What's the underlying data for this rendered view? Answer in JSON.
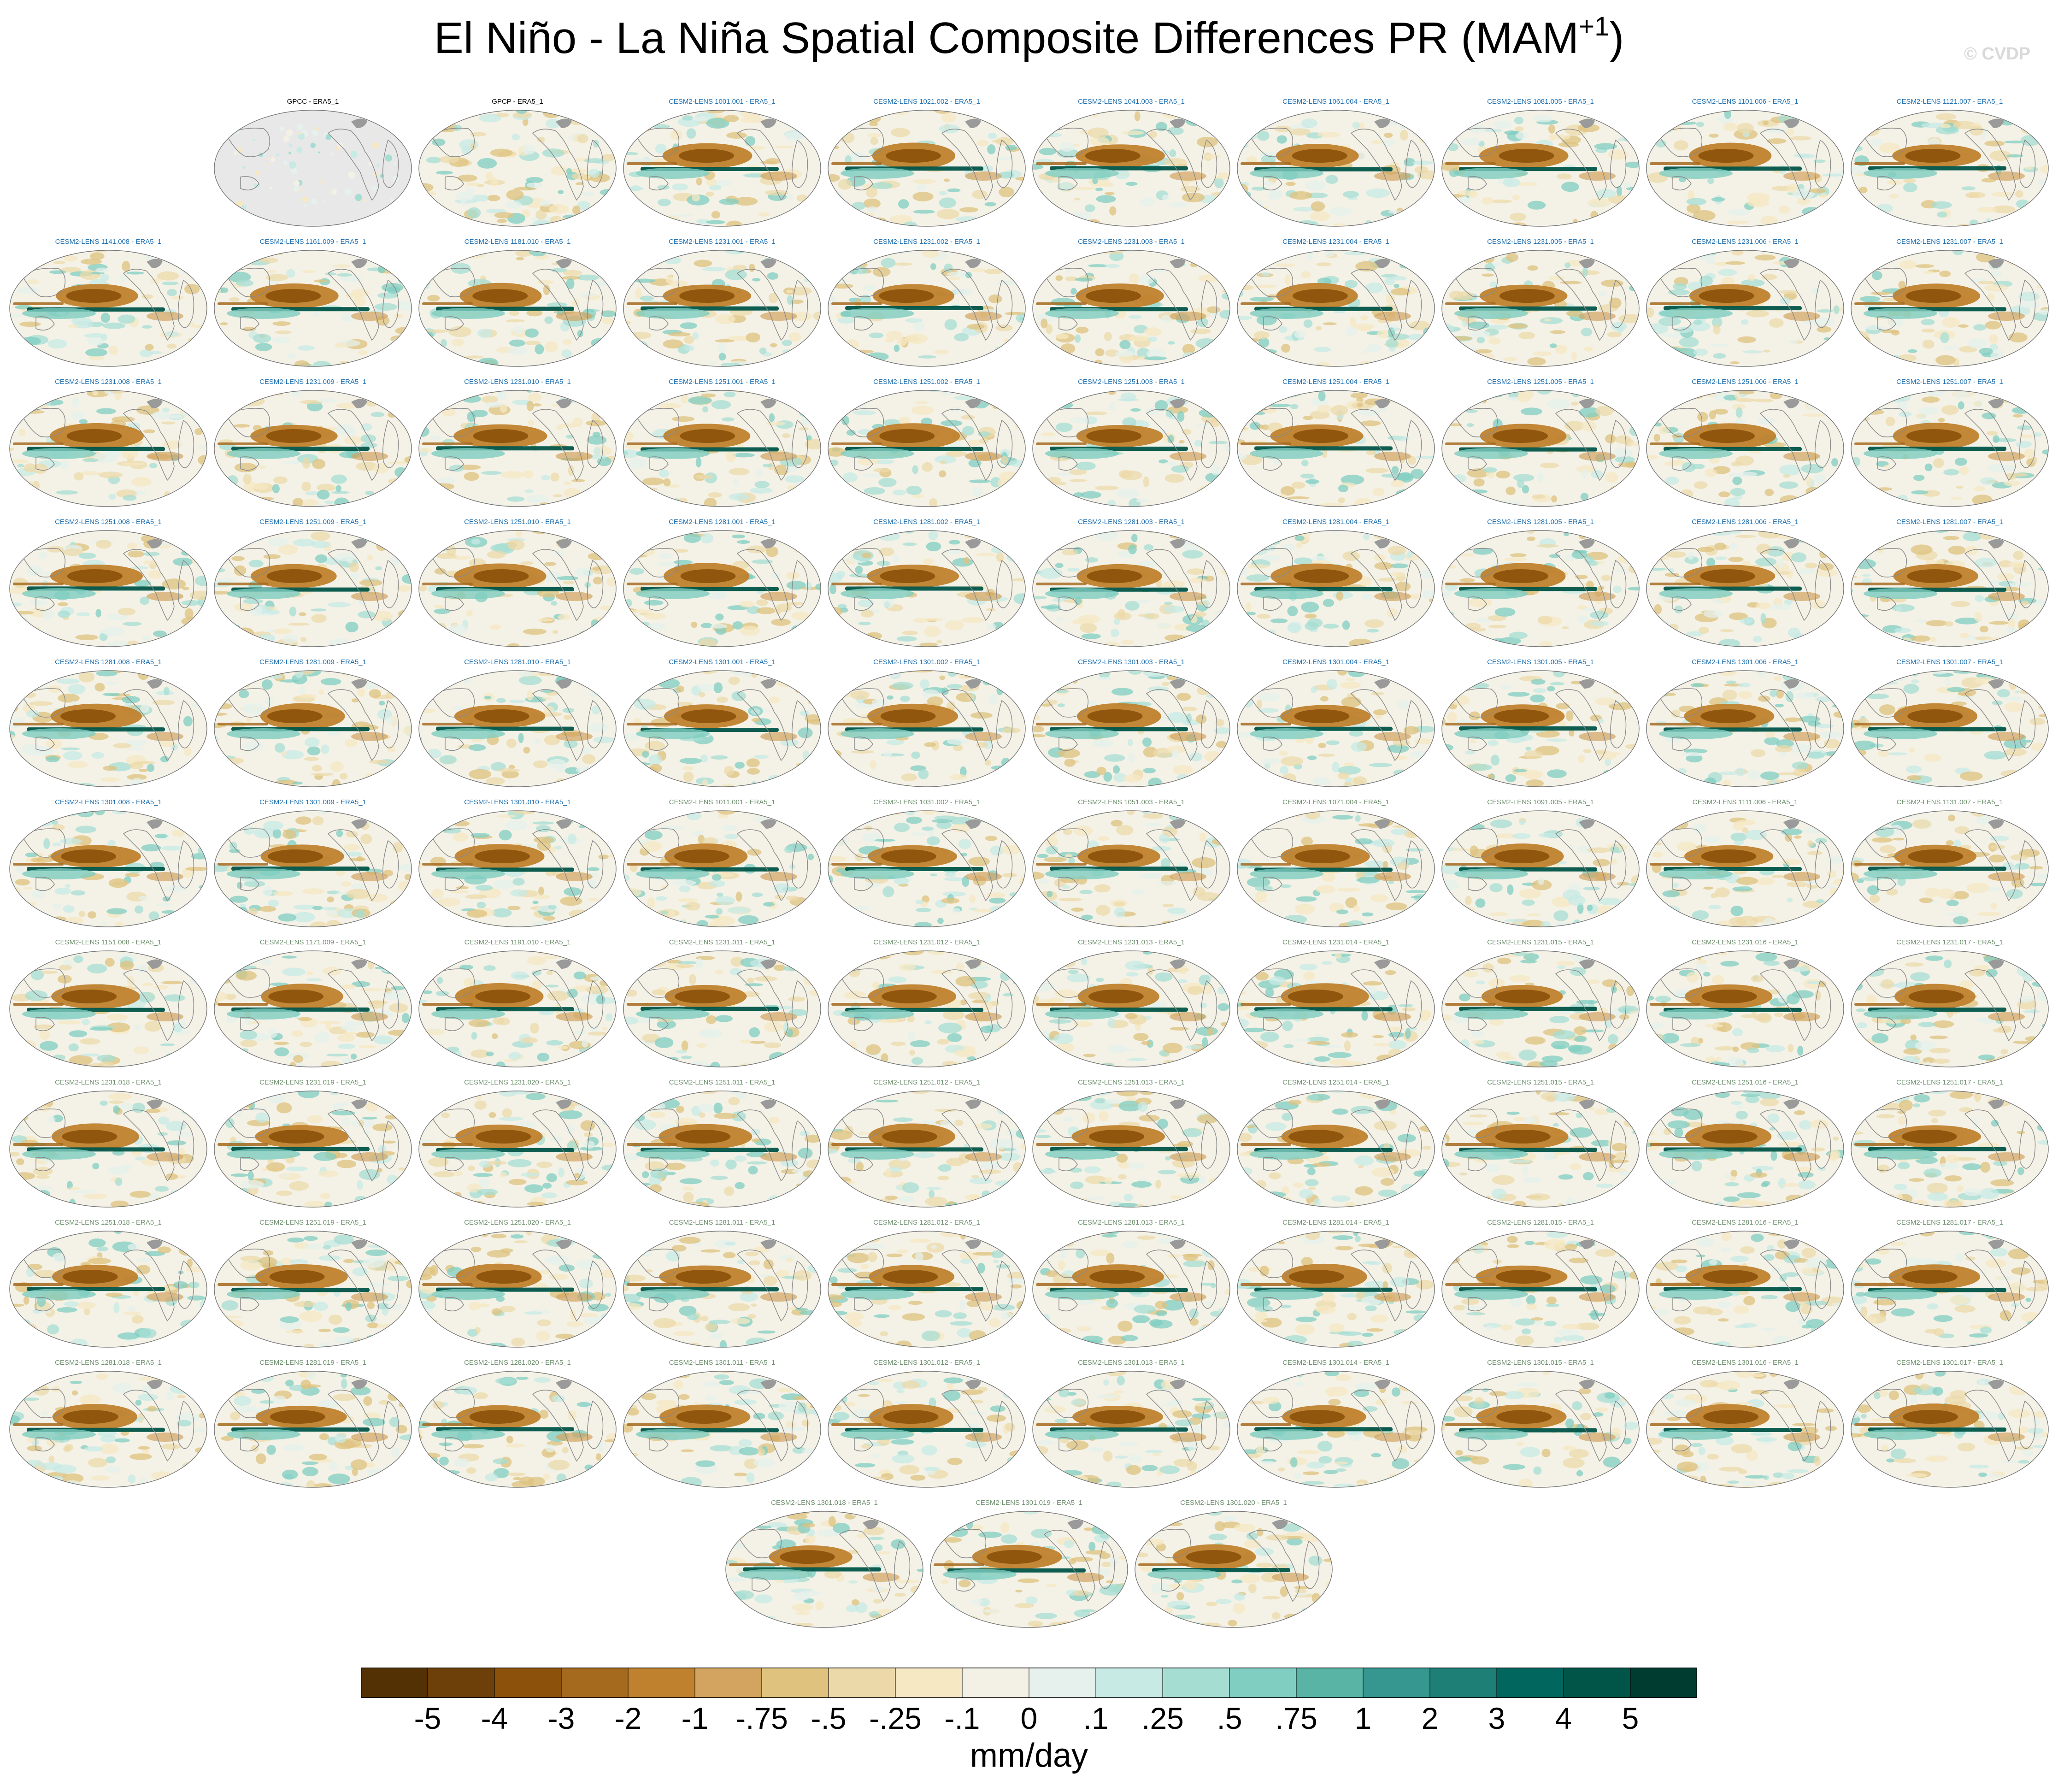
{
  "title": "El Niño - La Niña Spatial Composite Differences PR (MAM",
  "title_sup": "+1",
  "title_close": ")",
  "watermark": "© CVDP",
  "units": "mm/day",
  "colors": {
    "obs_title": "#000000",
    "lens_a_title": "#1f6fb0",
    "lens_b_title": "#6e8f6e",
    "land_outline": "#8a8a8a",
    "missing": "#e8e8e8"
  },
  "colorbar": {
    "colors": [
      "#543005",
      "#6d3f09",
      "#8c510a",
      "#a66a1e",
      "#bf812d",
      "#d2a45f",
      "#dfc27d",
      "#ecd9aa",
      "#f6e8c3",
      "#f3f0e6",
      "#e6f0ec",
      "#c7eae5",
      "#a5ddd3",
      "#80cdc1",
      "#5ab4a6",
      "#35978f",
      "#1d7f76",
      "#01665e",
      "#015448",
      "#003c30"
    ],
    "labels": [
      "-5",
      "-4",
      "-3",
      "-2",
      "-1",
      "-.75",
      "-.5",
      "-.25",
      "-.1",
      "0",
      ".1",
      ".25",
      ".5",
      ".75",
      "1",
      "2",
      "3",
      "4",
      "5"
    ]
  },
  "chart_data": {
    "type": "heatmap",
    "description_key": "map_panels",
    "panels": [
      {
        "title": "GPCC - ERA5_1",
        "kind": "obs_gpcc"
      },
      {
        "title": "GPCP - ERA5_1",
        "kind": "obs"
      },
      {
        "title": "CESM2-LENS 1001.001 - ERA5_1",
        "kind": "a"
      },
      {
        "title": "CESM2-LENS 1021.002 - ERA5_1",
        "kind": "a"
      },
      {
        "title": "CESM2-LENS 1041.003 - ERA5_1",
        "kind": "a"
      },
      {
        "title": "CESM2-LENS 1061.004 - ERA5_1",
        "kind": "a"
      },
      {
        "title": "CESM2-LENS 1081.005 - ERA5_1",
        "kind": "a"
      },
      {
        "title": "CESM2-LENS 1101.006 - ERA5_1",
        "kind": "a"
      },
      {
        "title": "CESM2-LENS 1121.007 - ERA5_1",
        "kind": "a"
      },
      {
        "title": "CESM2-LENS 1141.008 - ERA5_1",
        "kind": "a"
      },
      {
        "title": "CESM2-LENS 1161.009 - ERA5_1",
        "kind": "a"
      },
      {
        "title": "CESM2-LENS 1181.010 - ERA5_1",
        "kind": "a"
      },
      {
        "title": "CESM2-LENS 1231.001 - ERA5_1",
        "kind": "a"
      },
      {
        "title": "CESM2-LENS 1231.002 - ERA5_1",
        "kind": "a"
      },
      {
        "title": "CESM2-LENS 1231.003 - ERA5_1",
        "kind": "a"
      },
      {
        "title": "CESM2-LENS 1231.004 - ERA5_1",
        "kind": "a"
      },
      {
        "title": "CESM2-LENS 1231.005 - ERA5_1",
        "kind": "a"
      },
      {
        "title": "CESM2-LENS 1231.006 - ERA5_1",
        "kind": "a"
      },
      {
        "title": "CESM2-LENS 1231.007 - ERA5_1",
        "kind": "a"
      },
      {
        "title": "CESM2-LENS 1231.008 - ERA5_1",
        "kind": "a"
      },
      {
        "title": "CESM2-LENS 1231.009 - ERA5_1",
        "kind": "a"
      },
      {
        "title": "CESM2-LENS 1231.010 - ERA5_1",
        "kind": "a"
      },
      {
        "title": "CESM2-LENS 1251.001 - ERA5_1",
        "kind": "a"
      },
      {
        "title": "CESM2-LENS 1251.002 - ERA5_1",
        "kind": "a"
      },
      {
        "title": "CESM2-LENS 1251.003 - ERA5_1",
        "kind": "a"
      },
      {
        "title": "CESM2-LENS 1251.004 - ERA5_1",
        "kind": "a"
      },
      {
        "title": "CESM2-LENS 1251.005 - ERA5_1",
        "kind": "a"
      },
      {
        "title": "CESM2-LENS 1251.006 - ERA5_1",
        "kind": "a"
      },
      {
        "title": "CESM2-LENS 1251.007 - ERA5_1",
        "kind": "a"
      },
      {
        "title": "CESM2-LENS 1251.008 - ERA5_1",
        "kind": "a"
      },
      {
        "title": "CESM2-LENS 1251.009 - ERA5_1",
        "kind": "a"
      },
      {
        "title": "CESM2-LENS 1251.010 - ERA5_1",
        "kind": "a"
      },
      {
        "title": "CESM2-LENS 1281.001 - ERA5_1",
        "kind": "a"
      },
      {
        "title": "CESM2-LENS 1281.002 - ERA5_1",
        "kind": "a"
      },
      {
        "title": "CESM2-LENS 1281.003 - ERA5_1",
        "kind": "a"
      },
      {
        "title": "CESM2-LENS 1281.004 - ERA5_1",
        "kind": "a"
      },
      {
        "title": "CESM2-LENS 1281.005 - ERA5_1",
        "kind": "a"
      },
      {
        "title": "CESM2-LENS 1281.006 - ERA5_1",
        "kind": "a"
      },
      {
        "title": "CESM2-LENS 1281.007 - ERA5_1",
        "kind": "a"
      },
      {
        "title": "CESM2-LENS 1281.008 - ERA5_1",
        "kind": "a"
      },
      {
        "title": "CESM2-LENS 1281.009 - ERA5_1",
        "kind": "a"
      },
      {
        "title": "CESM2-LENS 1281.010 - ERA5_1",
        "kind": "a"
      },
      {
        "title": "CESM2-LENS 1301.001 - ERA5_1",
        "kind": "a"
      },
      {
        "title": "CESM2-LENS 1301.002 - ERA5_1",
        "kind": "a"
      },
      {
        "title": "CESM2-LENS 1301.003 - ERA5_1",
        "kind": "a"
      },
      {
        "title": "CESM2-LENS 1301.004 - ERA5_1",
        "kind": "a"
      },
      {
        "title": "CESM2-LENS 1301.005 - ERA5_1",
        "kind": "a"
      },
      {
        "title": "CESM2-LENS 1301.006 - ERA5_1",
        "kind": "a"
      },
      {
        "title": "CESM2-LENS 1301.007 - ERA5_1",
        "kind": "a"
      },
      {
        "title": "CESM2-LENS 1301.008 - ERA5_1",
        "kind": "a"
      },
      {
        "title": "CESM2-LENS 1301.009 - ERA5_1",
        "kind": "a"
      },
      {
        "title": "CESM2-LENS 1301.010 - ERA5_1",
        "kind": "a"
      },
      {
        "title": "CESM2-LENS 1011.001 - ERA5_1",
        "kind": "b"
      },
      {
        "title": "CESM2-LENS 1031.002 - ERA5_1",
        "kind": "b"
      },
      {
        "title": "CESM2-LENS 1051.003 - ERA5_1",
        "kind": "b"
      },
      {
        "title": "CESM2-LENS 1071.004 - ERA5_1",
        "kind": "b"
      },
      {
        "title": "CESM2-LENS 1091.005 - ERA5_1",
        "kind": "b"
      },
      {
        "title": "CESM2-LENS 1111.006 - ERA5_1",
        "kind": "b"
      },
      {
        "title": "CESM2-LENS 1131.007 - ERA5_1",
        "kind": "b"
      },
      {
        "title": "CESM2-LENS 1151.008 - ERA5_1",
        "kind": "b"
      },
      {
        "title": "CESM2-LENS 1171.009 - ERA5_1",
        "kind": "b"
      },
      {
        "title": "CESM2-LENS 1191.010 - ERA5_1",
        "kind": "b"
      },
      {
        "title": "CESM2-LENS 1231.011 - ERA5_1",
        "kind": "b"
      },
      {
        "title": "CESM2-LENS 1231.012 - ERA5_1",
        "kind": "b"
      },
      {
        "title": "CESM2-LENS 1231.013 - ERA5_1",
        "kind": "b"
      },
      {
        "title": "CESM2-LENS 1231.014 - ERA5_1",
        "kind": "b"
      },
      {
        "title": "CESM2-LENS 1231.015 - ERA5_1",
        "kind": "b"
      },
      {
        "title": "CESM2-LENS 1231.016 - ERA5_1",
        "kind": "b"
      },
      {
        "title": "CESM2-LENS 1231.017 - ERA5_1",
        "kind": "b"
      },
      {
        "title": "CESM2-LENS 1231.018 - ERA5_1",
        "kind": "b"
      },
      {
        "title": "CESM2-LENS 1231.019 - ERA5_1",
        "kind": "b"
      },
      {
        "title": "CESM2-LENS 1231.020 - ERA5_1",
        "kind": "b"
      },
      {
        "title": "CESM2-LENS 1251.011 - ERA5_1",
        "kind": "b"
      },
      {
        "title": "CESM2-LENS 1251.012 - ERA5_1",
        "kind": "b"
      },
      {
        "title": "CESM2-LENS 1251.013 - ERA5_1",
        "kind": "b"
      },
      {
        "title": "CESM2-LENS 1251.014 - ERA5_1",
        "kind": "b"
      },
      {
        "title": "CESM2-LENS 1251.015 - ERA5_1",
        "kind": "b"
      },
      {
        "title": "CESM2-LENS 1251.016 - ERA5_1",
        "kind": "b"
      },
      {
        "title": "CESM2-LENS 1251.017 - ERA5_1",
        "kind": "b"
      },
      {
        "title": "CESM2-LENS 1251.018 - ERA5_1",
        "kind": "b"
      },
      {
        "title": "CESM2-LENS 1251.019 - ERA5_1",
        "kind": "b"
      },
      {
        "title": "CESM2-LENS 1251.020 - ERA5_1",
        "kind": "b"
      },
      {
        "title": "CESM2-LENS 1281.011 - ERA5_1",
        "kind": "b"
      },
      {
        "title": "CESM2-LENS 1281.012 - ERA5_1",
        "kind": "b"
      },
      {
        "title": "CESM2-LENS 1281.013 - ERA5_1",
        "kind": "b"
      },
      {
        "title": "CESM2-LENS 1281.014 - ERA5_1",
        "kind": "b"
      },
      {
        "title": "CESM2-LENS 1281.015 - ERA5_1",
        "kind": "b"
      },
      {
        "title": "CESM2-LENS 1281.016 - ERA5_1",
        "kind": "b"
      },
      {
        "title": "CESM2-LENS 1281.017 - ERA5_1",
        "kind": "b"
      },
      {
        "title": "CESM2-LENS 1281.018 - ERA5_1",
        "kind": "b"
      },
      {
        "title": "CESM2-LENS 1281.019 - ERA5_1",
        "kind": "b"
      },
      {
        "title": "CESM2-LENS 1281.020 - ERA5_1",
        "kind": "b"
      },
      {
        "title": "CESM2-LENS 1301.011 - ERA5_1",
        "kind": "b"
      },
      {
        "title": "CESM2-LENS 1301.012 - ERA5_1",
        "kind": "b"
      },
      {
        "title": "CESM2-LENS 1301.013 - ERA5_1",
        "kind": "b"
      },
      {
        "title": "CESM2-LENS 1301.014 - ERA5_1",
        "kind": "b"
      },
      {
        "title": "CESM2-LENS 1301.015 - ERA5_1",
        "kind": "b"
      },
      {
        "title": "CESM2-LENS 1301.016 - ERA5_1",
        "kind": "b"
      },
      {
        "title": "CESM2-LENS 1301.017 - ERA5_1",
        "kind": "b"
      },
      {
        "title": "CESM2-LENS 1301.018 - ERA5_1",
        "kind": "b"
      },
      {
        "title": "CESM2-LENS 1301.019 - ERA5_1",
        "kind": "b"
      },
      {
        "title": "CESM2-LENS 1301.020 - ERA5_1",
        "kind": "b"
      }
    ]
  }
}
